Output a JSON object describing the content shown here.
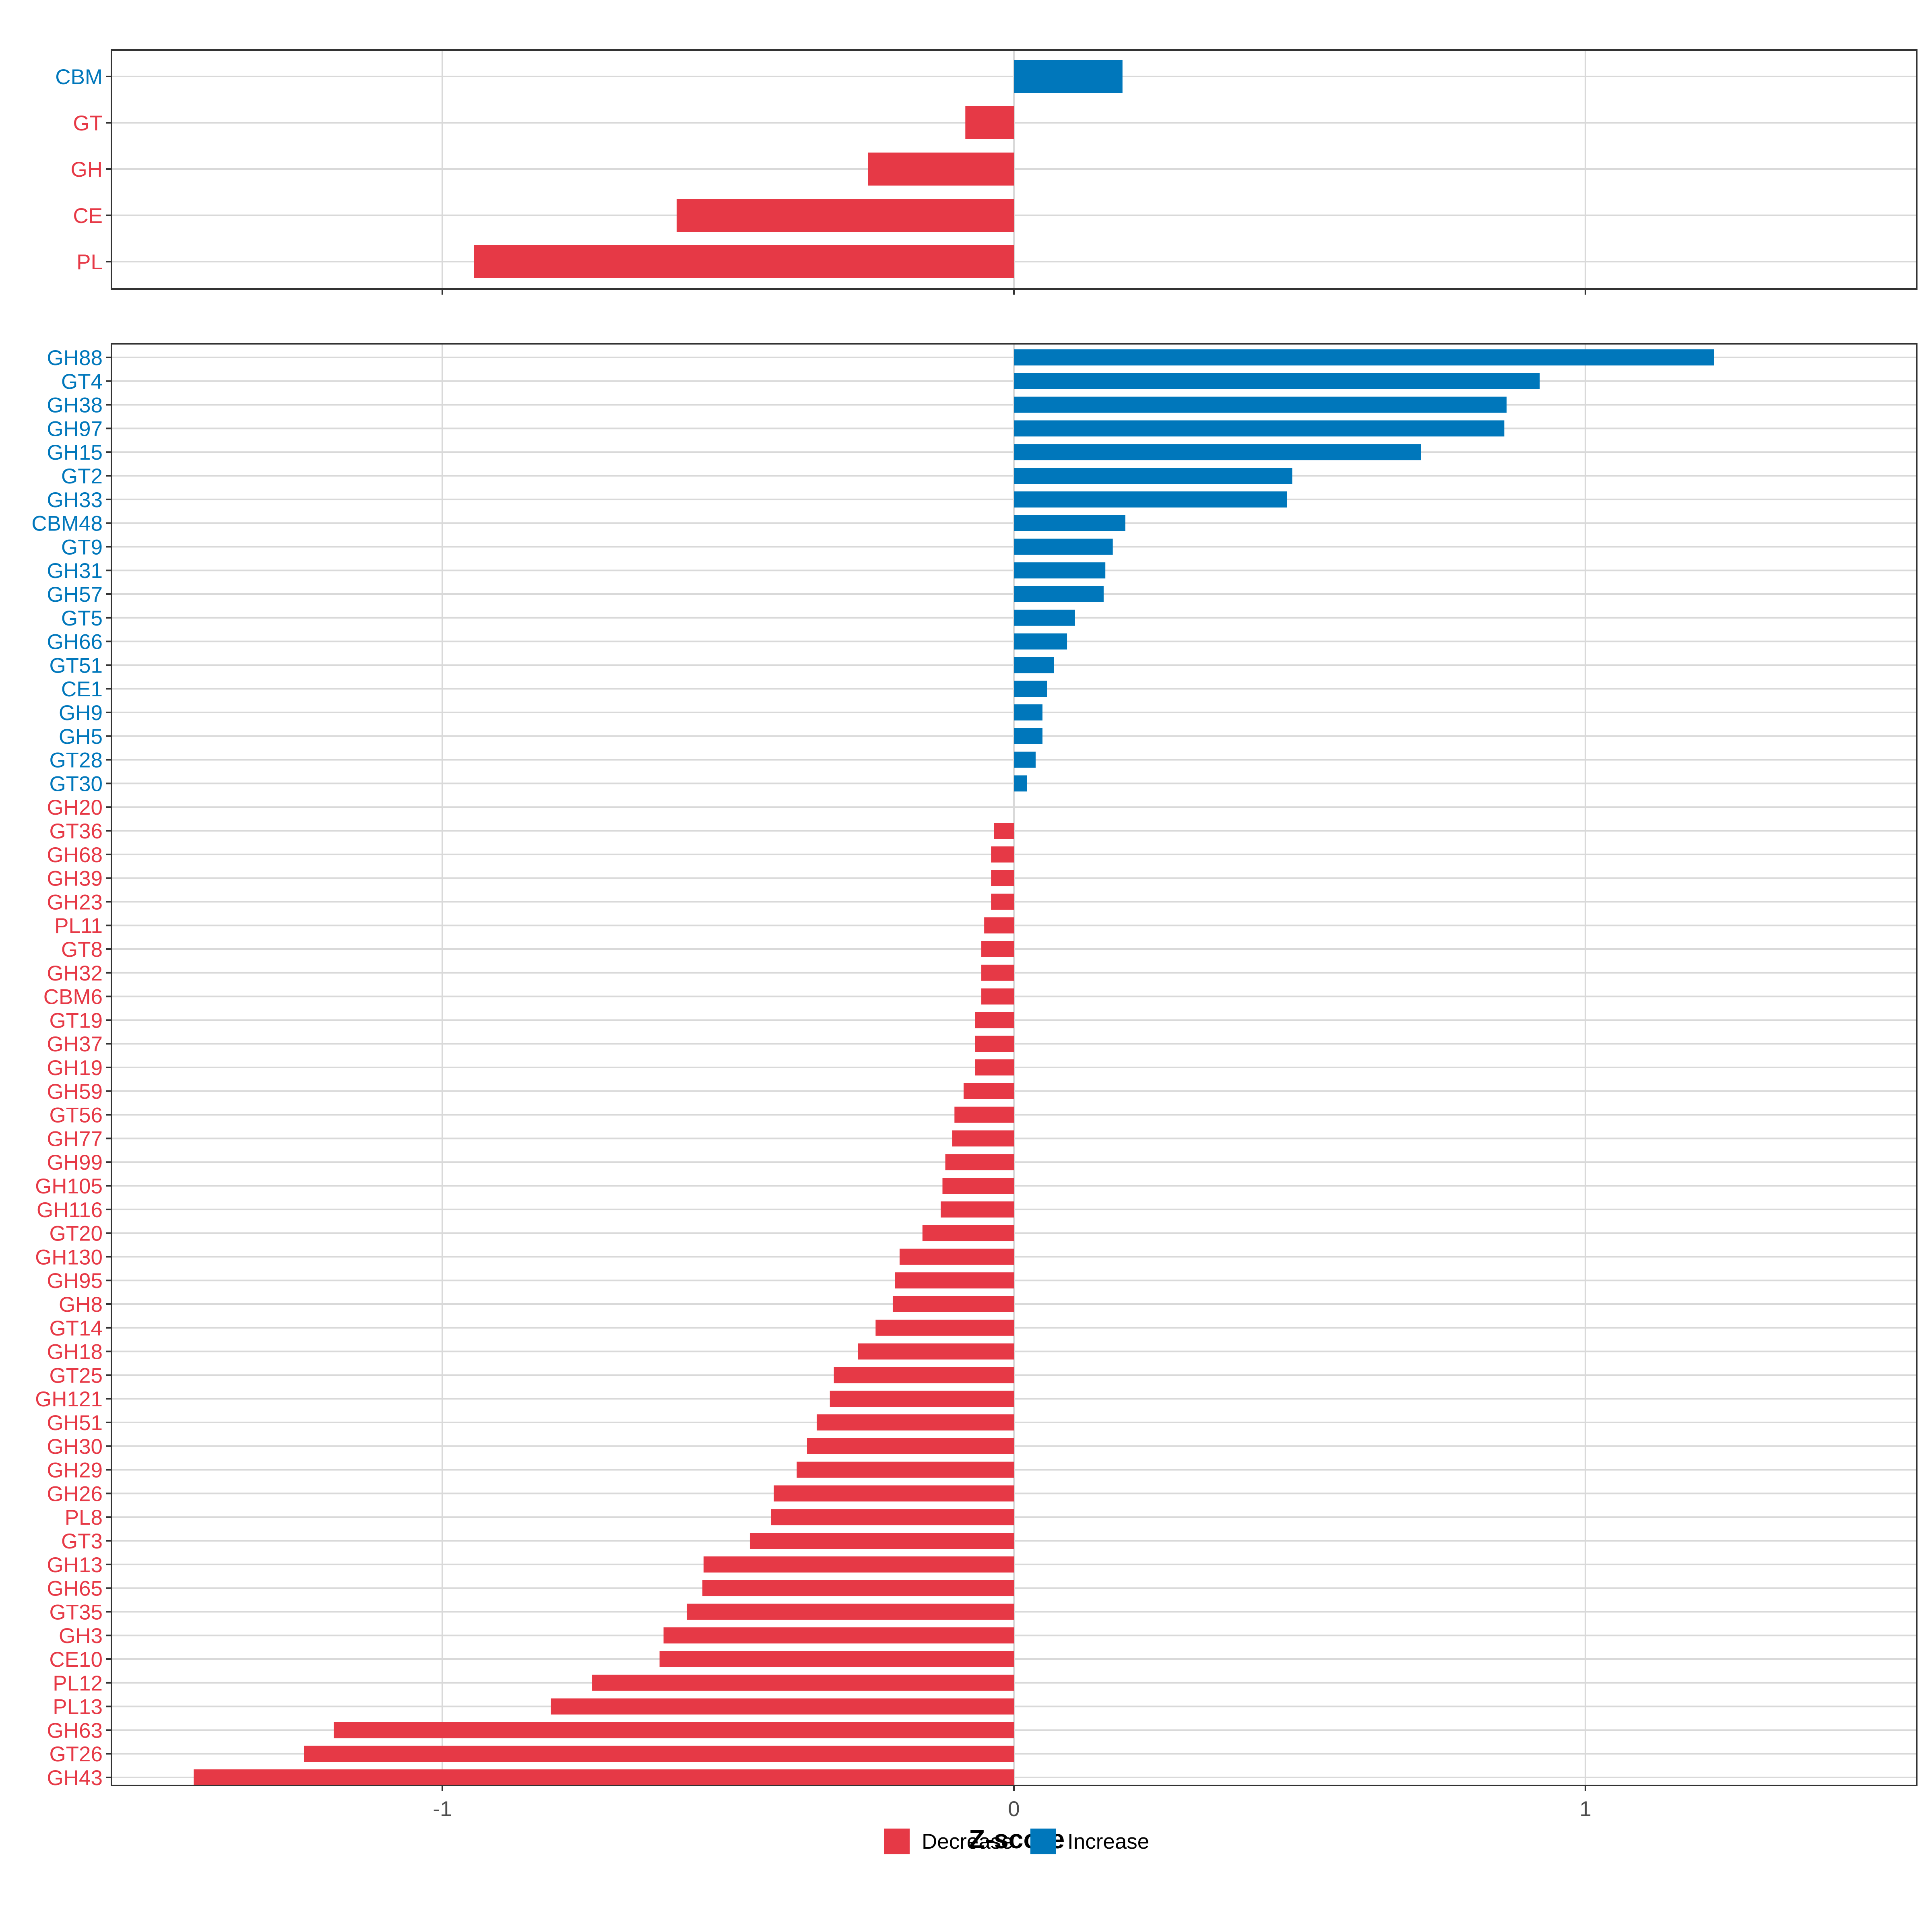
{
  "chart_data": [
    {
      "type": "bar",
      "orientation": "horizontal",
      "panel": "top",
      "categories": [
        "CBM",
        "GT",
        "GH",
        "CE",
        "PL"
      ],
      "values": [
        0.19,
        -0.085,
        -0.255,
        -0.59,
        -0.945
      ],
      "xlim": [
        -1.58,
        1.58
      ],
      "xticks": [
        -1,
        0,
        1
      ],
      "grid": true
    },
    {
      "type": "bar",
      "orientation": "horizontal",
      "panel": "bottom",
      "categories": [
        "GH88",
        "GT4",
        "GH38",
        "GH97",
        "GH15",
        "GT2",
        "GH33",
        "CBM48",
        "GT9",
        "GH31",
        "GH57",
        "GT5",
        "GH66",
        "GT51",
        "CE1",
        "GH9",
        "GH5",
        "GT28",
        "GT30",
        "GH20",
        "GT36",
        "GH68",
        "GH39",
        "GH23",
        "PL11",
        "GT8",
        "GH32",
        "CBM6",
        "GT19",
        "GH37",
        "GH19",
        "GH59",
        "GT56",
        "GH77",
        "GH99",
        "GH105",
        "GH116",
        "GT20",
        "GH130",
        "GH95",
        "GH8",
        "GT14",
        "GH18",
        "GT25",
        "GH121",
        "GH51",
        "GH30",
        "GH29",
        "GH26",
        "PL8",
        "GT3",
        "GH13",
        "GH65",
        "GT35",
        "GH3",
        "CE10",
        "PL12",
        "PL13",
        "GH63",
        "GT26",
        "GH43"
      ],
      "values": [
        1.225,
        0.92,
        0.862,
        0.858,
        0.712,
        0.487,
        0.478,
        0.195,
        0.173,
        0.16,
        0.157,
        0.107,
        0.093,
        0.07,
        0.058,
        0.05,
        0.05,
        0.038,
        0.023,
        0.0,
        -0.035,
        -0.04,
        -0.04,
        -0.04,
        -0.052,
        -0.057,
        -0.057,
        -0.057,
        -0.068,
        -0.068,
        -0.068,
        -0.088,
        -0.104,
        -0.108,
        -0.12,
        -0.125,
        -0.128,
        -0.16,
        -0.2,
        -0.208,
        -0.212,
        -0.242,
        -0.273,
        -0.315,
        -0.322,
        -0.345,
        -0.362,
        -0.38,
        -0.42,
        -0.425,
        -0.462,
        -0.543,
        -0.545,
        -0.572,
        -0.613,
        -0.62,
        -0.738,
        -0.81,
        -1.19,
        -1.242,
        -1.435
      ],
      "xlim": [
        -1.58,
        1.58
      ],
      "xticks": [
        -1,
        0,
        1
      ],
      "xtick_labels": [
        "-1",
        "0",
        "1"
      ],
      "xlabel": "Z-score",
      "grid": true
    }
  ],
  "legend": {
    "items": [
      {
        "label": "Decrease",
        "color": "#e63946"
      },
      {
        "label": "Increase",
        "color": "#0077bb"
      }
    ],
    "placement": "bottom"
  },
  "colors": {
    "decrease": "#e63946",
    "increase": "#0077bb",
    "grid": "#d9d9d9",
    "panel_border": "#333333",
    "tick_text": "#4d4d4d"
  }
}
